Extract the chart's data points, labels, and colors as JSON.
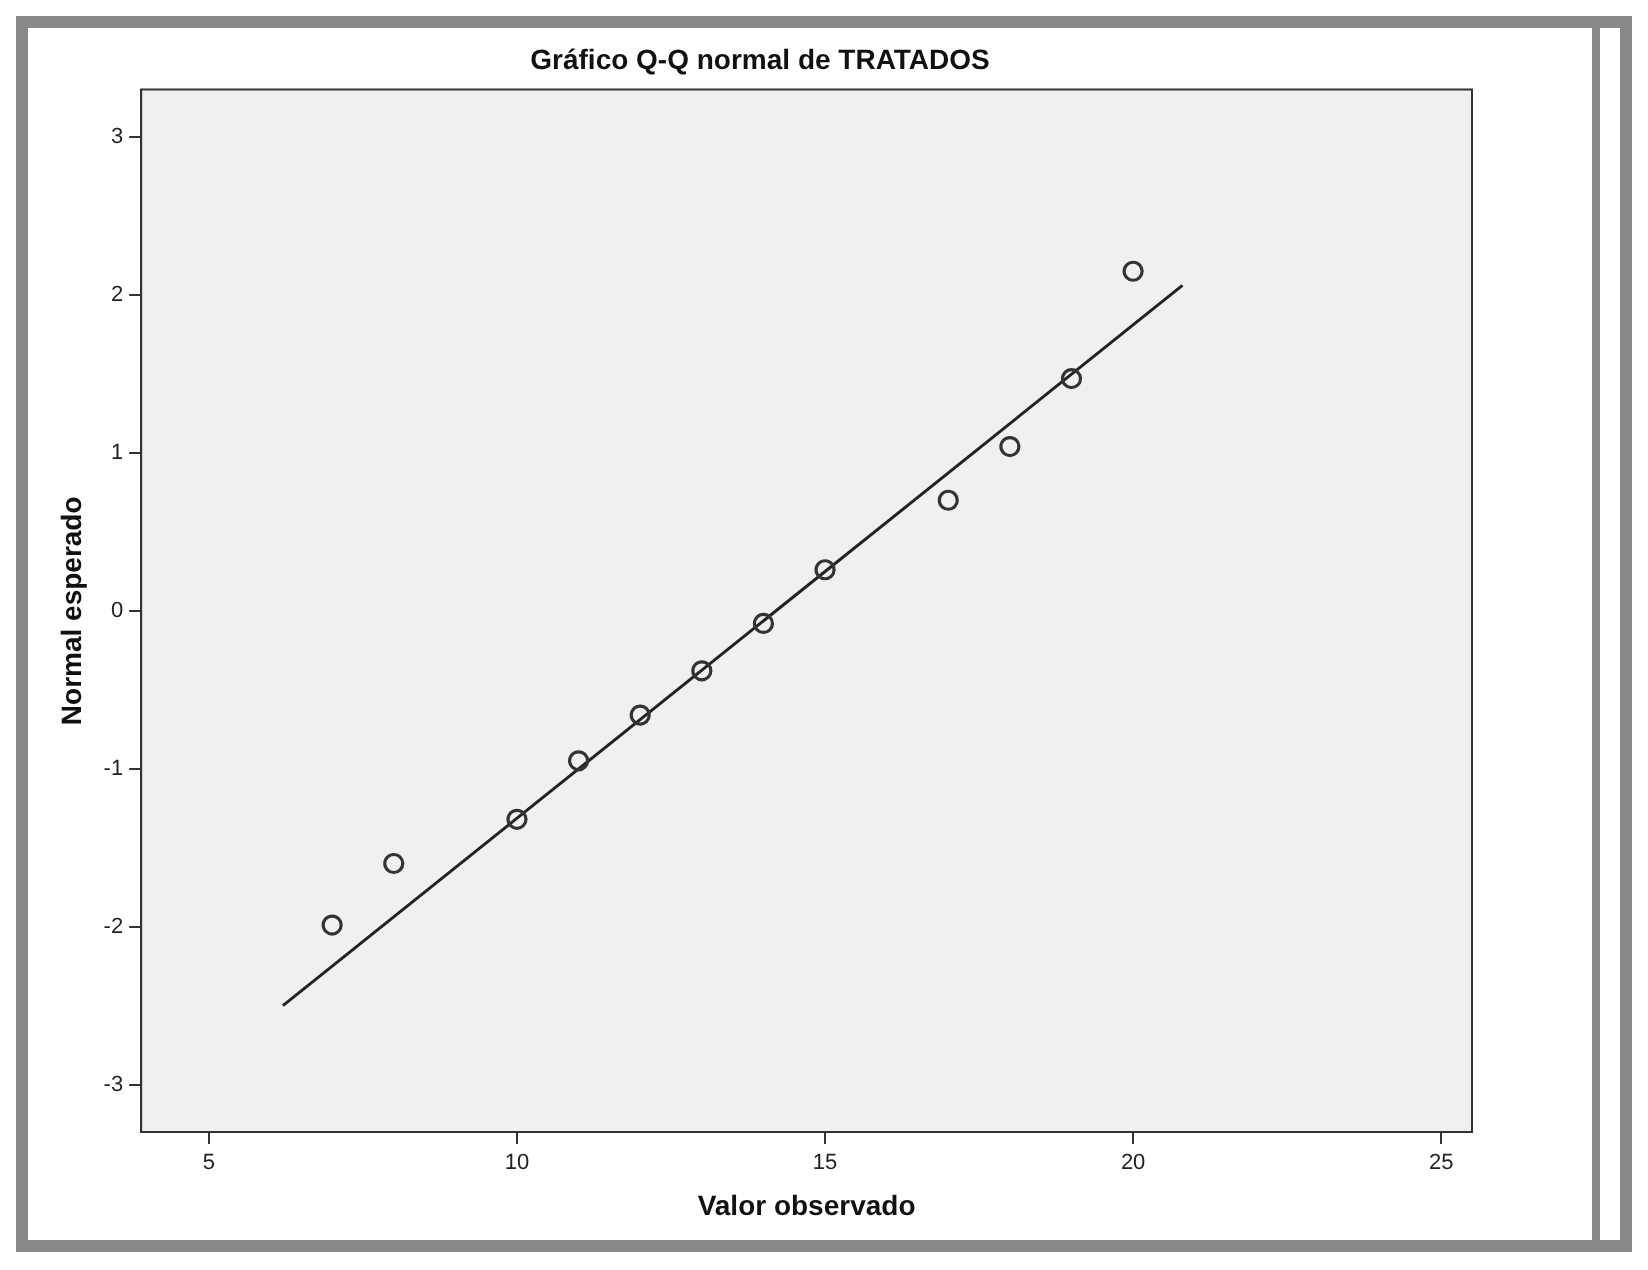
{
  "chart_data": {
    "type": "scatter",
    "title": "Gráfico Q-Q normal de TRATADOS",
    "xlabel": "Valor observado",
    "ylabel": "Normal esperado",
    "x": [
      7,
      8,
      10,
      11,
      12,
      13,
      14,
      15,
      17,
      18,
      19,
      20
    ],
    "series": [
      {
        "color": "#333333",
        "marker": "circle",
        "values": [
          -1.99,
          -1.6,
          -1.32,
          -0.95,
          -0.66,
          -0.38,
          -0.08,
          0.26,
          0.7,
          1.04,
          1.47,
          2.15
        ]
      },
      {
        "type": "line",
        "marker": "none",
        "color": "#222222",
        "x": [
          6.2,
          20.8
        ],
        "values": [
          -2.5,
          2.06
        ]
      }
    ],
    "xlim": [
      3.9,
      25.5
    ],
    "xticks": [
      5,
      10,
      15,
      20,
      25
    ],
    "ylim": [
      -3.3,
      3.3
    ],
    "yticks": [
      -3,
      -2,
      -1,
      0,
      1,
      2,
      3
    ],
    "grid": false,
    "legend": false
  }
}
